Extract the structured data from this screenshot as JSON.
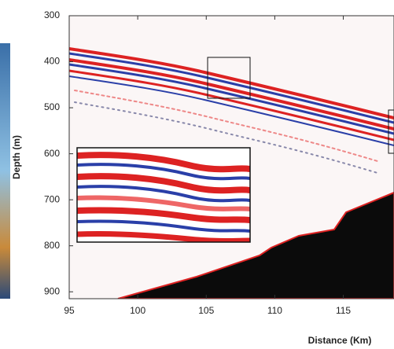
{
  "chart_data": {
    "type": "seismic",
    "x_label": "Distance (Km)",
    "y_label": "Depth (m)",
    "xlim": [
      95,
      118.7
    ],
    "ylim": [
      300,
      915
    ],
    "y_reversed": true,
    "xticks": [
      95,
      100,
      105,
      110,
      115
    ],
    "yticks": [
      300,
      400,
      500,
      600,
      700,
      800,
      900
    ]
  }
}
